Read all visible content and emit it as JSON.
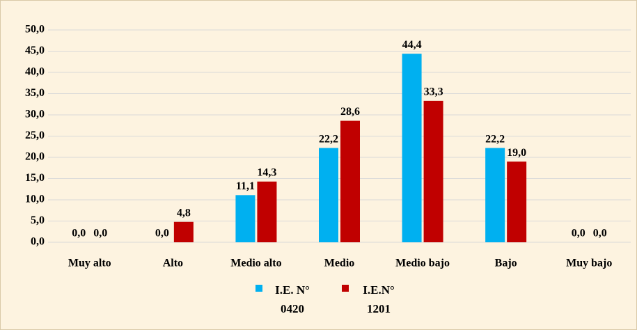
{
  "chart_data": {
    "type": "bar",
    "categories": [
      "Muy alto",
      "Alto",
      "Medio alto",
      "Medio",
      "Medio bajo",
      "Bajo",
      "Muy bajo"
    ],
    "series": [
      {
        "name": "I.E. N° 0420",
        "color": "#00b0f0",
        "values": [
          0,
          0,
          11.1,
          22.2,
          44.4,
          22.2,
          0
        ],
        "value_labels": [
          "0,0",
          "0,0",
          "11,1",
          "22,2",
          "44,4",
          "22,2",
          "0,0"
        ]
      },
      {
        "name": "I.E.N° 1201",
        "color": "#c00000",
        "values": [
          0,
          4.8,
          14.3,
          28.6,
          33.3,
          19.0,
          0
        ],
        "value_labels": [
          "0,0",
          "4,8",
          "14,3",
          "28,6",
          "33,3",
          "19,0",
          "0,0"
        ]
      }
    ],
    "ylim": [
      0,
      50
    ],
    "yticks": [
      {
        "value": 0,
        "label": "0,0"
      },
      {
        "value": 5,
        "label": "5,0"
      },
      {
        "value": 10,
        "label": "10,0"
      },
      {
        "value": 15,
        "label": "15,0"
      },
      {
        "value": 20,
        "label": "20,0"
      },
      {
        "value": 25,
        "label": "25,0"
      },
      {
        "value": 30,
        "label": "30,0"
      },
      {
        "value": 35,
        "label": "35,0"
      },
      {
        "value": 40,
        "label": "40,0"
      },
      {
        "value": 45,
        "label": "45,0"
      },
      {
        "value": 50,
        "label": "50,0"
      }
    ],
    "grid": true,
    "legend": "bottom"
  }
}
